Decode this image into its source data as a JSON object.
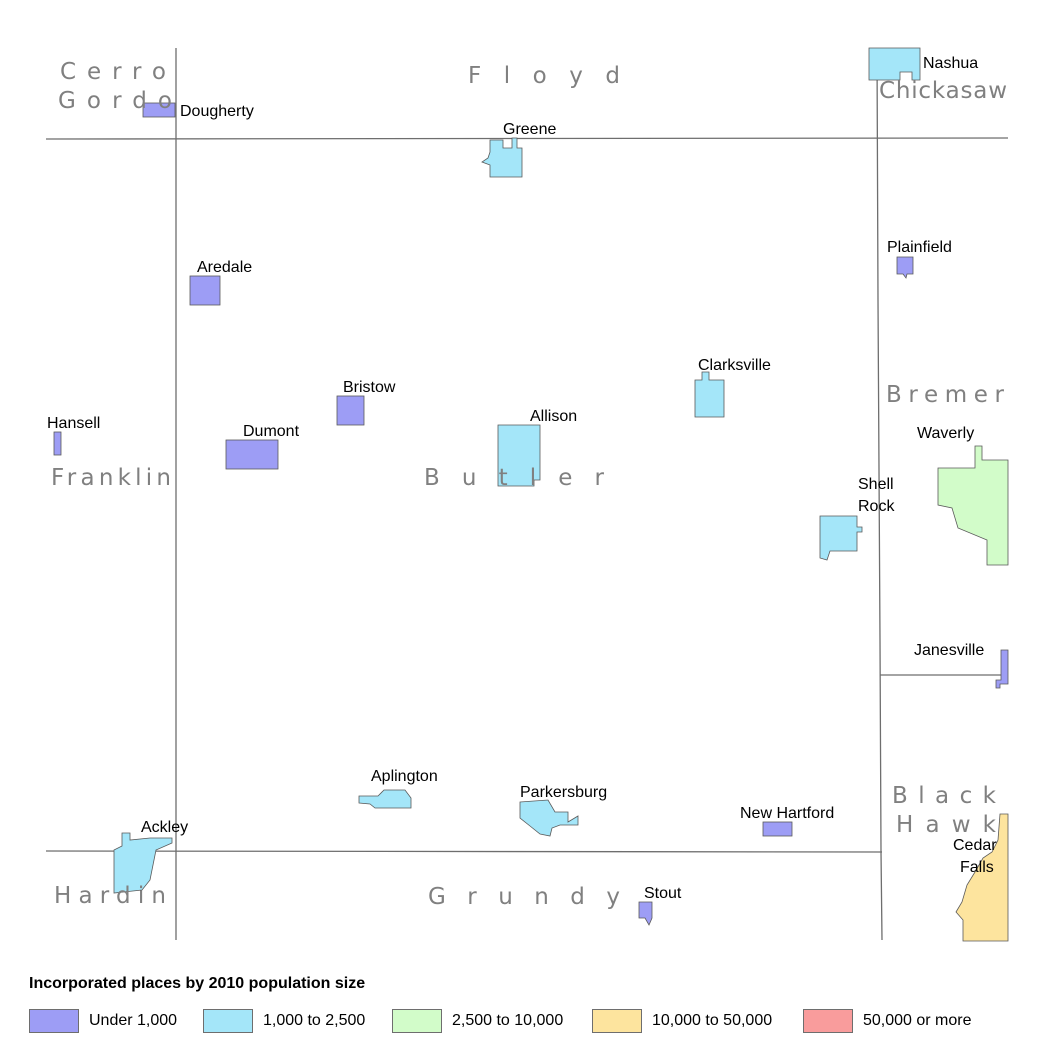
{
  "counties": {
    "cerro_gordo_1": "Cerro",
    "cerro_gordo_2": "Gordo",
    "floyd": "Floyd",
    "chickasaw": "Chickasaw",
    "bremer": "Bremer",
    "franklin": "Franklin",
    "butler": "Butler",
    "black_hawk_1": "Black",
    "black_hawk_2": "Hawk",
    "hardin": "Hardin",
    "grundy": "Grundy"
  },
  "places": {
    "nashua": "Nashua",
    "dougherty": "Dougherty",
    "greene": "Greene",
    "plainfield": "Plainfield",
    "aredale": "Aredale",
    "clarksville": "Clarksville",
    "bristow": "Bristow",
    "allison": "Allison",
    "hansell": "Hansell",
    "dumont": "Dumont",
    "waverly": "Waverly",
    "shell_rock_1": "Shell",
    "shell_rock_2": "Rock",
    "janesville": "Janesville",
    "aplington": "Aplington",
    "parkersburg": "Parkersburg",
    "new_hartford": "New Hartford",
    "ackley": "Ackley",
    "cedar_falls_1": "Cedar",
    "cedar_falls_2": "Falls",
    "stout": "Stout"
  },
  "legend": {
    "title": "Incorporated places by 2010 population size",
    "items": [
      {
        "label": "Under 1,000",
        "color": "#9d9df5"
      },
      {
        "label": "1,000 to 2,500",
        "color": "#a4e6f9"
      },
      {
        "label": "2,500 to 10,000",
        "color": "#d2fcc9"
      },
      {
        "label": "10,000 to 50,000",
        "color": "#fde49e"
      },
      {
        "label": "50,000 or more",
        "color": "#f99c9c"
      }
    ]
  }
}
